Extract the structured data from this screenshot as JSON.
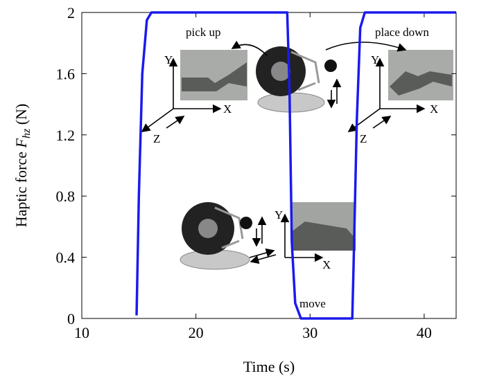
{
  "chart_data": {
    "type": "line",
    "xlabel": "Time (s)",
    "ylabel": {
      "text": "Haptic force",
      "symbol": "F",
      "subscript": "hz",
      "unit": "(N)"
    },
    "x": [
      14.8,
      15.0,
      15.3,
      15.7,
      16.1,
      28.0,
      28.2,
      28.4,
      28.7,
      29.2,
      33.7,
      33.8,
      34.1,
      34.4,
      34.8,
      42.8
    ],
    "series": [
      {
        "color": "#1a1aee",
        "values": [
          0.02,
          0.8,
          1.6,
          1.95,
          2,
          2,
          1.5,
          0.5,
          0.1,
          0,
          0,
          0.3,
          1.3,
          1.9,
          2,
          2
        ]
      }
    ],
    "xlim": [
      10,
      42.8
    ],
    "xticks": [
      10,
      20,
      30,
      40
    ],
    "ylim": [
      0,
      2
    ],
    "yticks": [
      0,
      0.4,
      0.8,
      1.2,
      1.6,
      2
    ],
    "annotations": [
      "pick up",
      "place down",
      "move",
      "Y",
      "X",
      "Z",
      "Y",
      "X",
      "Z",
      "Y",
      "X"
    ]
  }
}
